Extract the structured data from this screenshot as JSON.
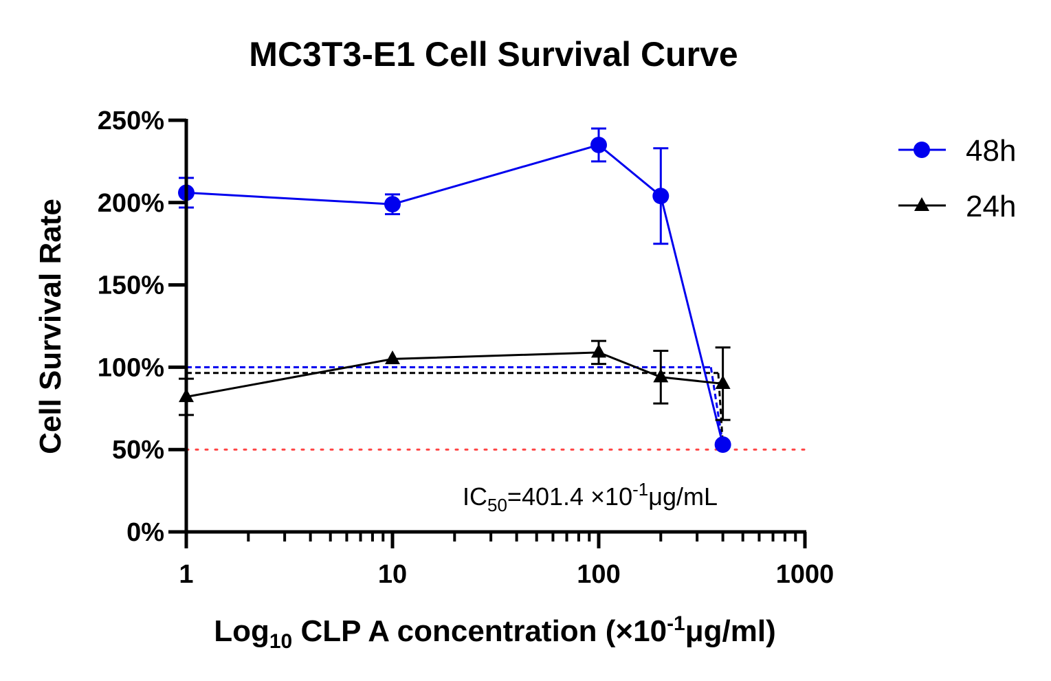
{
  "chart_data": {
    "type": "line",
    "title": "MC3T3-E1 Cell Survival Curve",
    "xlabel": {
      "prefix": "Log",
      "sub": "10",
      "middle": " CLP A concentration (×10",
      "sup": "-1",
      "suffix": "μg/ml)"
    },
    "ylabel": "Cell Survival Rate",
    "xscale": "log",
    "xlim": [
      1,
      1000
    ],
    "ylim": [
      0,
      250
    ],
    "xticks": [
      "1",
      "10",
      "100",
      "1000"
    ],
    "yticks": [
      "0%",
      "50%",
      "100%",
      "150%",
      "200%",
      "250%"
    ],
    "legend_position": "top-right",
    "series": [
      {
        "name": "48h",
        "color": "#0000ee",
        "marker": "circle",
        "x": [
          1,
          10,
          100,
          200,
          400
        ],
        "y": [
          206,
          199,
          235,
          204,
          53
        ],
        "err": [
          9,
          6,
          10,
          29,
          0
        ]
      },
      {
        "name": "24h",
        "color": "#000000",
        "marker": "triangle",
        "x": [
          1,
          10,
          100,
          200,
          400
        ],
        "y": [
          82,
          105,
          109,
          94,
          90
        ],
        "err": [
          11,
          0,
          7,
          16,
          22
        ]
      }
    ],
    "reference_lines": [
      {
        "y": 50,
        "x_from": 1,
        "x_to": 1000,
        "color": "#ff4444",
        "style": "dotted"
      },
      {
        "y": 100,
        "x_from": 1,
        "x_to": 350,
        "color": "#0000ee",
        "style": "dashed"
      },
      {
        "y": 96.5,
        "x_from": 1,
        "x_to": 380,
        "color": "#000000",
        "style": "dashed"
      }
    ],
    "annotation": {
      "prefix": "IC",
      "sub": "50",
      "middle": "=401.4 ×10",
      "sup": "-1",
      "suffix": "μg/mL"
    }
  }
}
